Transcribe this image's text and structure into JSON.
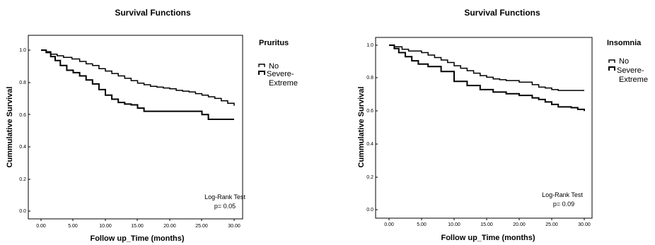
{
  "chart_data": [
    {
      "type": "line",
      "title": "Survival Functions",
      "xlabel": "Follow up_Time (months)",
      "ylabel": "Cummulative Survival",
      "xlim": [
        0,
        30
      ],
      "ylim": [
        0,
        1
      ],
      "x_ticks": [
        "0.00",
        "5.00",
        "10.00",
        "15.00",
        "20.00",
        "25.00",
        "30.00"
      ],
      "y_ticks": [
        "0.0",
        "0.2",
        "0.4",
        "0.6",
        "0.8",
        "1.0"
      ],
      "grid": false,
      "legend": {
        "title": "Pruritus",
        "placement": "right",
        "labels": [
          "No",
          "Severe-",
          "Extreme"
        ]
      },
      "annotation": {
        "line1": "Log-Rank Test",
        "line2": "p= 0.05"
      },
      "series": [
        {
          "name": "No",
          "color": "#000000",
          "stroke_width": 1.5,
          "x": [
            0,
            0.8,
            1.5,
            2.5,
            3.5,
            4.8,
            6,
            7,
            8,
            9,
            10,
            11,
            12,
            13,
            14,
            15,
            16,
            17,
            18,
            19,
            20,
            21,
            22,
            23,
            24,
            25,
            26,
            27,
            28,
            29,
            30
          ],
          "y": [
            1.0,
            0.99,
            0.975,
            0.965,
            0.955,
            0.945,
            0.93,
            0.915,
            0.905,
            0.885,
            0.87,
            0.855,
            0.84,
            0.825,
            0.81,
            0.795,
            0.785,
            0.775,
            0.77,
            0.765,
            0.76,
            0.75,
            0.745,
            0.74,
            0.73,
            0.72,
            0.71,
            0.7,
            0.685,
            0.67,
            0.655
          ]
        },
        {
          "name": "Severe-Extreme",
          "color": "#000000",
          "stroke_width": 2,
          "x": [
            0,
            0.8,
            1.5,
            2.2,
            3,
            4,
            5,
            6,
            7,
            8,
            9,
            10,
            11,
            12,
            13,
            14,
            15,
            16,
            20,
            24,
            25,
            26,
            30
          ],
          "y": [
            1.0,
            0.985,
            0.96,
            0.935,
            0.905,
            0.875,
            0.86,
            0.84,
            0.815,
            0.79,
            0.755,
            0.72,
            0.695,
            0.675,
            0.665,
            0.66,
            0.64,
            0.62,
            0.62,
            0.62,
            0.6,
            0.57,
            0.57
          ]
        }
      ]
    },
    {
      "type": "line",
      "title": "Survival Functions",
      "xlabel": "Follow up_Time (months)",
      "ylabel": "Cummulative Survival",
      "xlim": [
        0,
        30
      ],
      "ylim": [
        0,
        1
      ],
      "x_ticks": [
        "0.00",
        "5.00",
        "10.00",
        "15.00",
        "20.00",
        "25.00",
        "30.00"
      ],
      "y_ticks": [
        "0.0",
        "0.2",
        "0.4",
        "0.6",
        "0.8",
        "1.0"
      ],
      "grid": false,
      "legend": {
        "title": "Insomnia",
        "placement": "right",
        "labels": [
          "No",
          "Severe-",
          "Extreme"
        ]
      },
      "annotation": {
        "line1": "Log-Rank Test",
        "line2": "p= 0.09"
      },
      "series": [
        {
          "name": "No",
          "color": "#000000",
          "stroke_width": 1.5,
          "x": [
            0,
            0.8,
            2,
            3,
            5,
            6,
            7,
            8,
            9,
            10,
            11,
            12,
            13,
            14,
            15,
            16,
            17,
            18,
            20,
            22,
            23,
            24,
            25,
            26,
            30
          ],
          "y": [
            1.0,
            0.99,
            0.975,
            0.965,
            0.955,
            0.94,
            0.925,
            0.91,
            0.895,
            0.875,
            0.86,
            0.845,
            0.83,
            0.815,
            0.805,
            0.795,
            0.79,
            0.785,
            0.775,
            0.76,
            0.745,
            0.74,
            0.73,
            0.725,
            0.725
          ]
        },
        {
          "name": "Severe-Extreme",
          "color": "#000000",
          "stroke_width": 2,
          "x": [
            0,
            0.8,
            1.5,
            2.5,
            3.5,
            4.5,
            6,
            8,
            10,
            12,
            14,
            16,
            18,
            20,
            22,
            23,
            24,
            25,
            26,
            28,
            29,
            30
          ],
          "y": [
            1.0,
            0.98,
            0.955,
            0.93,
            0.905,
            0.885,
            0.87,
            0.84,
            0.78,
            0.755,
            0.73,
            0.715,
            0.705,
            0.695,
            0.68,
            0.67,
            0.655,
            0.64,
            0.625,
            0.62,
            0.61,
            0.6
          ]
        }
      ]
    }
  ]
}
